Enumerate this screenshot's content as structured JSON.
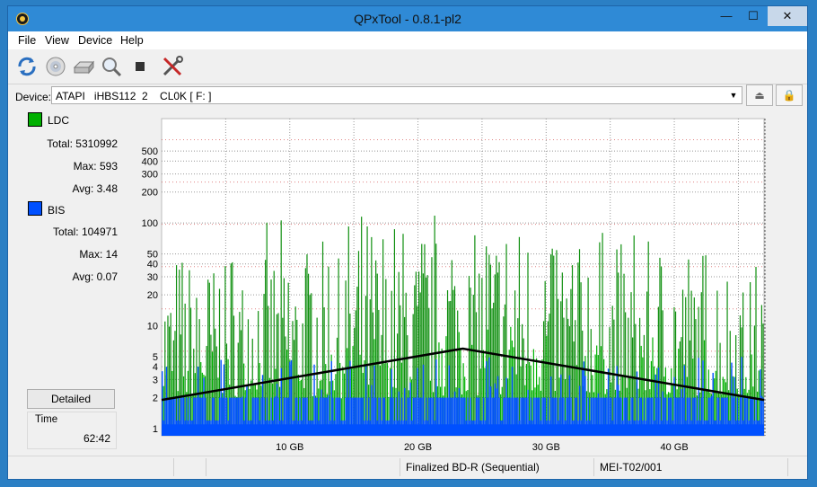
{
  "window": {
    "title": "QPxTool - 0.8.1-pl2",
    "minimize": "—",
    "maximize": "☐",
    "close": "✕"
  },
  "menu": {
    "items": [
      "File",
      "View",
      "Device",
      "Help"
    ]
  },
  "toolbar": {
    "icons": [
      "refresh-icon",
      "disc-scan-icon",
      "drive-icon",
      "magnifier-icon",
      "stop-icon",
      "tools-icon"
    ]
  },
  "device": {
    "label": "Device:",
    "value": "ATAPI   iHBS112  2    CL0K [ F: ]",
    "eject_icon": "eject-icon",
    "lock_icon": "lock-icon"
  },
  "legend": {
    "ldc": {
      "label": "LDC",
      "color": "#00b000",
      "total": "Total: 5310992",
      "max": "Max: 593",
      "avg": "Avg: 3.48"
    },
    "bis": {
      "label": "BIS",
      "color": "#0050ff",
      "total": "Total: 104971",
      "max": "Max: 14",
      "avg": "Avg: 0.07"
    }
  },
  "detailed_button": "Detailed",
  "time": {
    "label": "Time",
    "value": "62:42"
  },
  "status": {
    "cells": [
      "",
      "",
      "",
      "Finalized BD-R (Sequential)",
      "MEI-T02/001",
      ""
    ]
  },
  "chart_data": {
    "type": "bar",
    "x_unit": "GB",
    "xlim": [
      0,
      47.0
    ],
    "x_ticks": [
      10,
      20,
      30,
      40
    ],
    "x_tick_labels": [
      "10 GB",
      "20 GB",
      "30 GB",
      "40 GB"
    ],
    "y_left_scale": "log",
    "y_left_ticks": [
      1,
      2,
      3,
      4,
      5,
      10,
      20,
      30,
      40,
      50,
      100,
      200,
      300,
      400,
      500
    ],
    "y_right_ticks": [
      2,
      4,
      6,
      8,
      10,
      12,
      14
    ],
    "y_right_lim": [
      0,
      15
    ],
    "grid": true,
    "series": [
      {
        "name": "LDC",
        "color": "#00b000",
        "max": 593,
        "avg": 3.48
      },
      {
        "name": "BIS",
        "color": "#0050ff",
        "max": 14,
        "avg": 0.07
      },
      {
        "color": "#000000",
        "type": "line",
        "x": [
          0,
          23.5,
          47.0
        ],
        "y": [
          1.9,
          6.0,
          1.9
        ]
      }
    ]
  }
}
